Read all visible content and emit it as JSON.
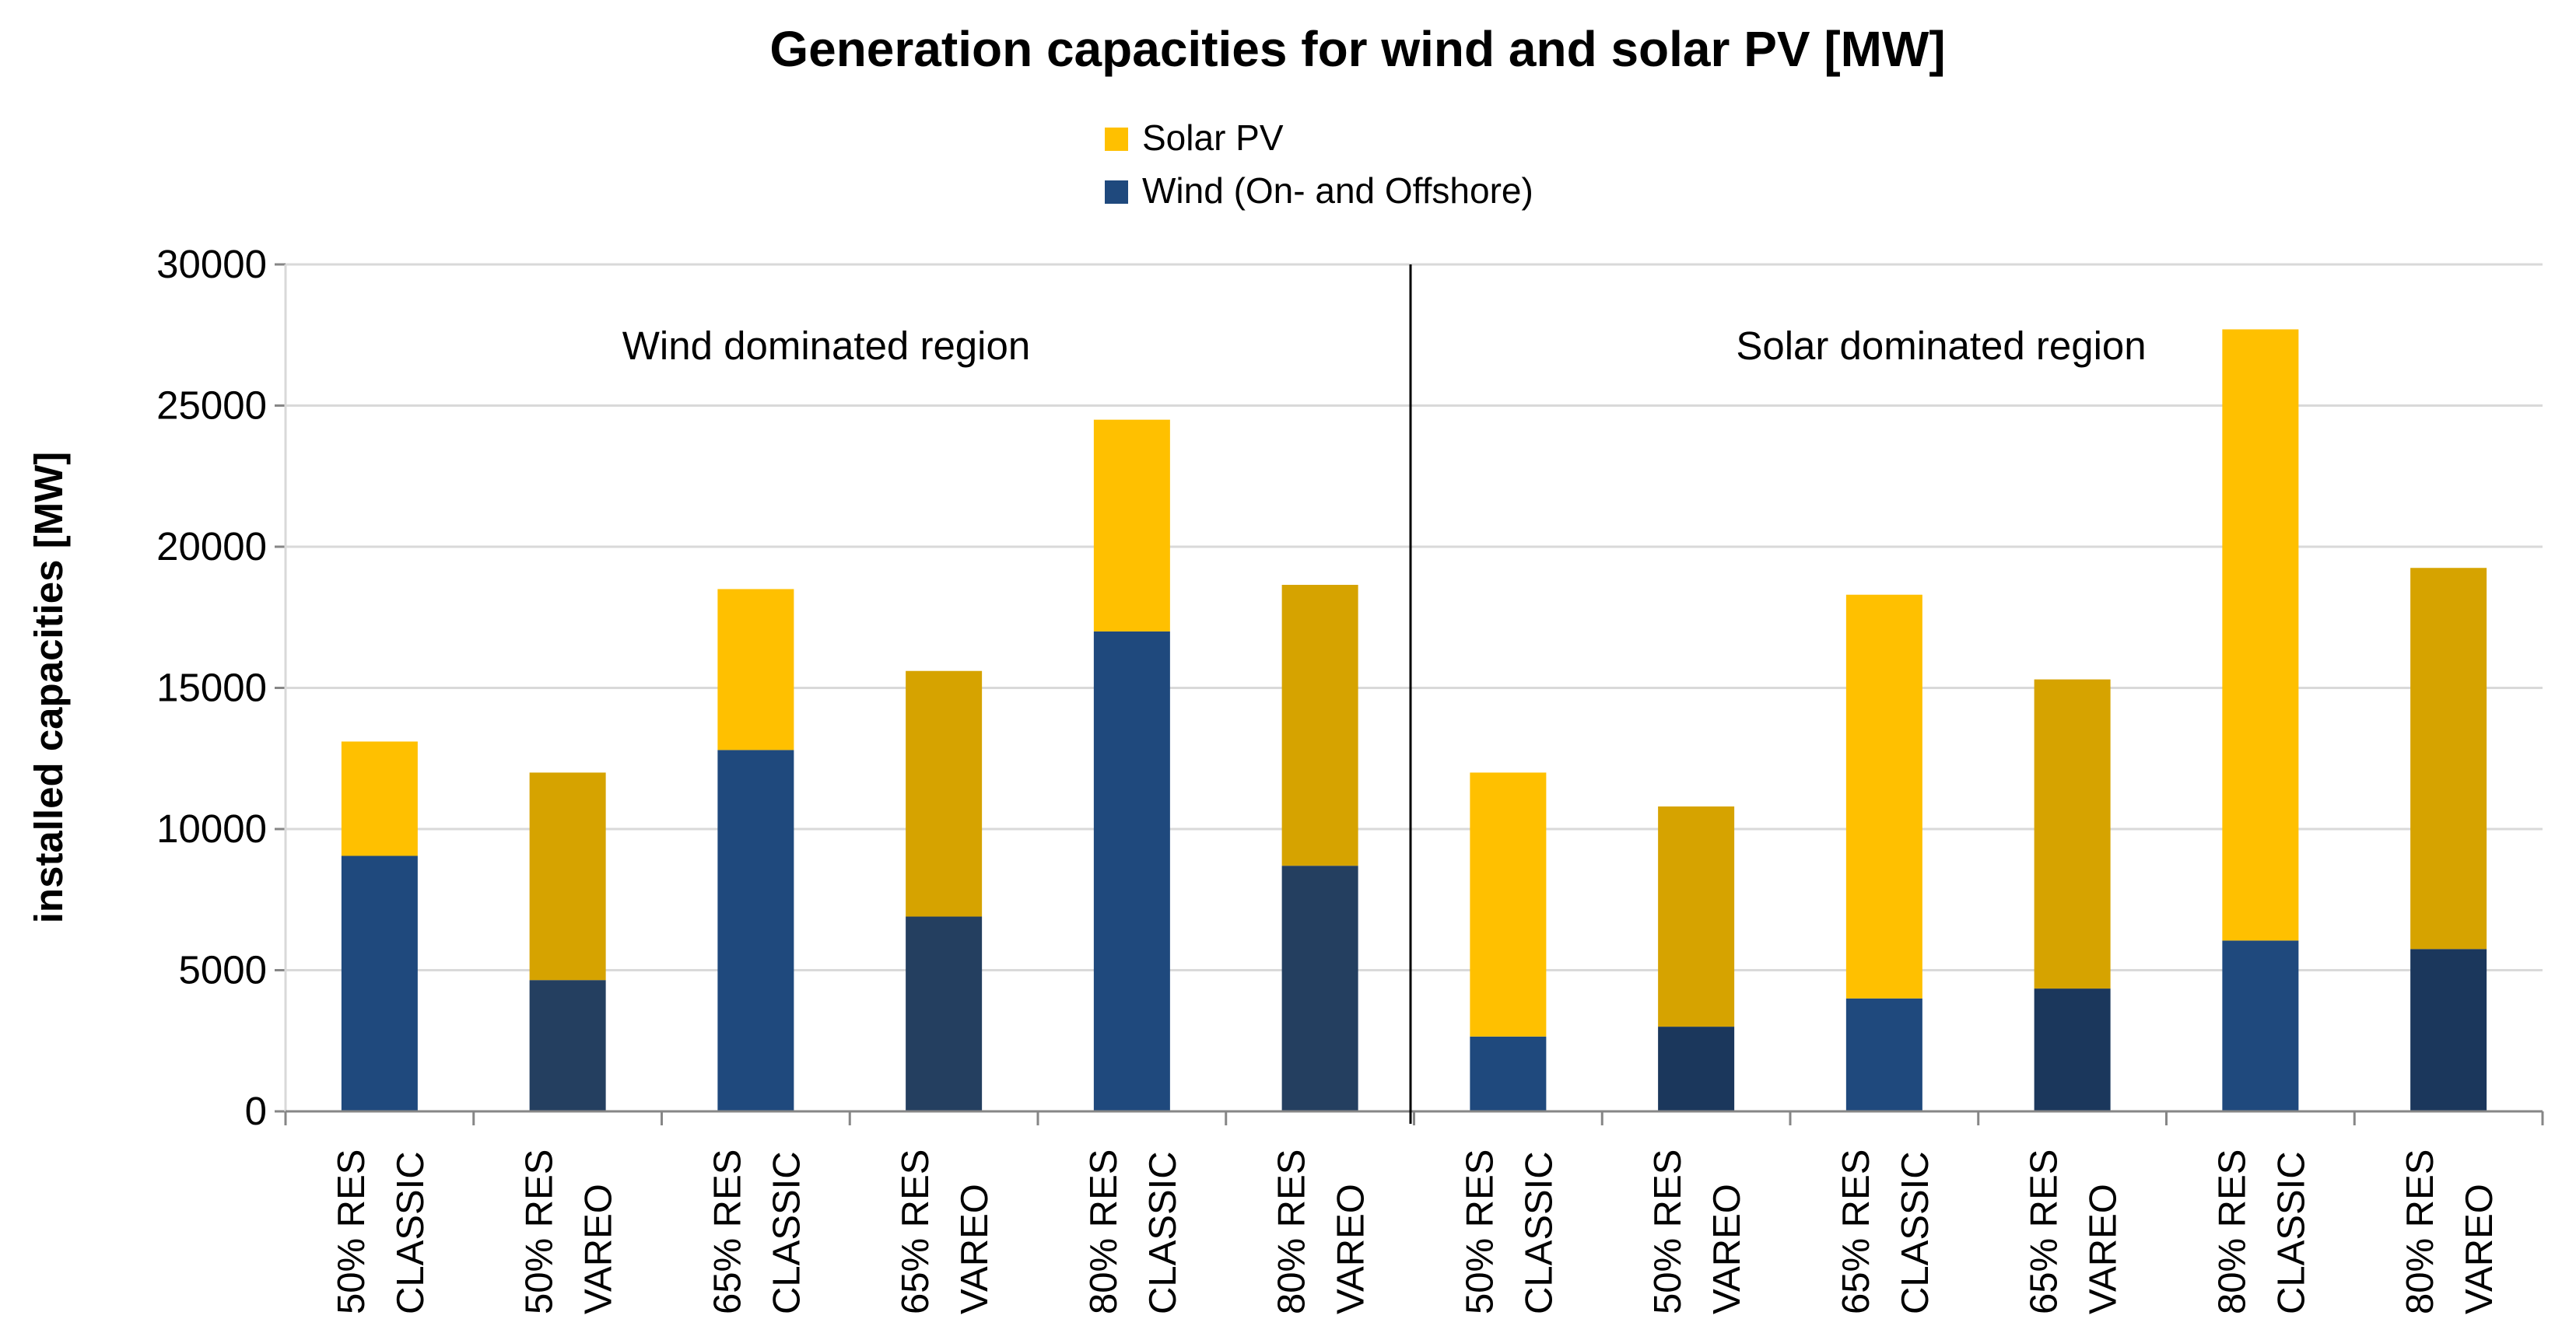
{
  "chart_data": {
    "type": "bar",
    "stacked": true,
    "title": "Generation capacities for wind and solar PV [MW]",
    "ylabel": "installed capacities [MW]",
    "xlabel": "",
    "ylim": [
      0,
      30000
    ],
    "yticks": [
      0,
      5000,
      10000,
      15000,
      20000,
      25000,
      30000
    ],
    "grid": true,
    "legend_position": "top-center",
    "legend": [
      "Solar PV",
      "Wind (On- and Offshore)"
    ],
    "regions": [
      "Wind dominated region",
      "Solar dominated region"
    ],
    "categories": [
      [
        "50% RES",
        "CLASSIC"
      ],
      [
        "50% RES",
        "VAREO"
      ],
      [
        "65% RES",
        "CLASSIC"
      ],
      [
        "65% RES",
        "VAREO"
      ],
      [
        "80% RES",
        "CLASSIC"
      ],
      [
        "80% RES",
        "VAREO"
      ],
      [
        "50% RES",
        "CLASSIC"
      ],
      [
        "50% RES",
        "VAREO"
      ],
      [
        "65% RES",
        "CLASSIC"
      ],
      [
        "65% RES",
        "VAREO"
      ],
      [
        "80% RES",
        "CLASSIC"
      ],
      [
        "80% RES",
        "VAREO"
      ]
    ],
    "series": [
      {
        "name": "Wind (On- and Offshore)",
        "values": [
          9050,
          4650,
          12800,
          6900,
          17000,
          8700,
          2650,
          3000,
          4000,
          4350,
          6050,
          5750
        ]
      },
      {
        "name": "Solar PV",
        "values": [
          4050,
          7350,
          5700,
          8700,
          7500,
          9950,
          9350,
          7800,
          14300,
          10950,
          21650,
          13500
        ]
      }
    ],
    "colors": {
      "wind_classic": "#1F497D",
      "wind_vareo": "#243F60",
      "wind_vareo_solar_region": "#1B375C",
      "solar_classic": "#FFC000",
      "solar_vareo": "#D6A300",
      "legend_wind": "#1F497D",
      "legend_solar": "#FFC000"
    }
  }
}
